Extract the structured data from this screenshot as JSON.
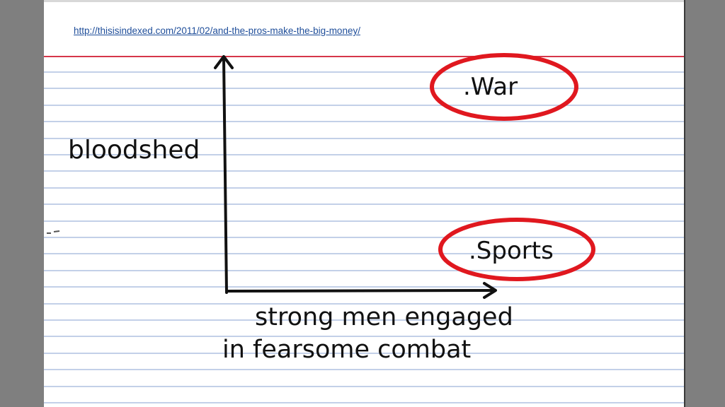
{
  "source": {
    "url_text": "http://thisisindexed.com/2011/02/and-the-pros-make-the-big-money/"
  },
  "colors": {
    "page_bg": "#7f7f7f",
    "card": "#ffffff",
    "ruled_line": "#9fb3da",
    "red_line": "#d6364a",
    "ink": "#111111",
    "circle": "#e0181f",
    "link": "#1f4e9a"
  },
  "chart_data": {
    "type": "scatter",
    "title": "",
    "ylabel": "bloodshed",
    "xlabel": "strong men engaged in fearsome combat",
    "xlabel_lines": [
      "strong men engaged",
      "in fearsome combat"
    ],
    "xlim": [
      0,
      10
    ],
    "ylim": [
      0,
      10
    ],
    "grid": false,
    "points": [
      {
        "label": "War",
        "display": ".War",
        "x": 8.1,
        "y": 9.0,
        "circled": true
      },
      {
        "label": "Sports",
        "display": ".Sports",
        "x": 8.2,
        "y": 1.8,
        "circled": true
      }
    ]
  }
}
